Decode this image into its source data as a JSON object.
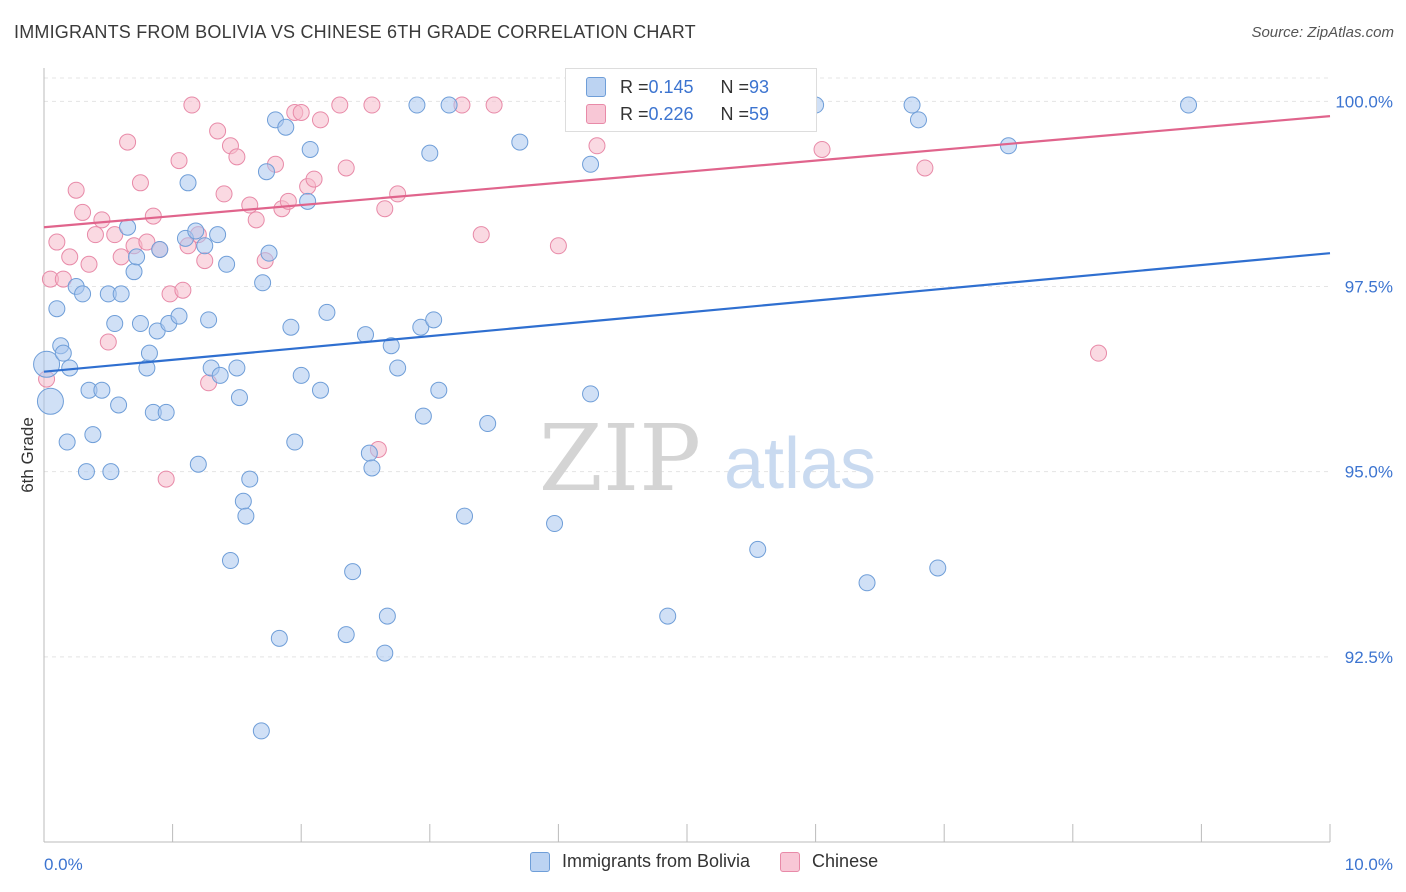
{
  "header": {
    "title": "IMMIGRANTS FROM BOLIVIA VS CHINESE 6TH GRADE CORRELATION CHART",
    "source": "Source: ZipAtlas.com"
  },
  "watermark": {
    "zip": "ZIP",
    "atlas": "atlas"
  },
  "legend_box": {
    "rows": [
      {
        "r_label": "R = ",
        "r_value": "0.145",
        "n_label": "N = ",
        "n_value": "93"
      },
      {
        "r_label": "R = ",
        "r_value": "0.226",
        "n_label": "N = ",
        "n_value": "59"
      }
    ]
  },
  "colors": {
    "blue_fill": "#a9c6ee",
    "blue_stroke": "#6f9ed8",
    "blue_line": "#2f6fd0",
    "pink_fill": "#f5b9cb",
    "pink_stroke": "#e88aa8",
    "pink_line": "#e0648c",
    "axis_text": "#3c74d0",
    "grid": "#e4e4e4"
  },
  "chart_data": {
    "type": "scatter",
    "title": "IMMIGRANTS FROM BOLIVIA VS CHINESE 6TH GRADE CORRELATION CHART",
    "xlabel": "",
    "ylabel": "6th Grade",
    "x_unit": "%",
    "xlim": [
      0.0,
      10.0
    ],
    "ylim": [
      90.0,
      100.45
    ],
    "x_tick_labels": [
      "0.0%",
      "10.0%"
    ],
    "y_ticks": [
      92.5,
      95.0,
      97.5,
      100.0
    ],
    "y_tick_labels": [
      "92.5%",
      "95.0%",
      "97.5%",
      "100.0%"
    ],
    "grid": true,
    "legend_placement": "bottom-center",
    "series": [
      {
        "name": "Immigrants from Bolivia",
        "r": 0.145,
        "n": 93,
        "trend": [
          [
            0.0,
            96.35
          ],
          [
            10.0,
            97.95
          ]
        ],
        "points": [
          [
            0.02,
            96.45
          ],
          [
            0.05,
            95.95
          ],
          [
            0.1,
            97.2
          ],
          [
            0.13,
            96.7
          ],
          [
            0.15,
            96.6
          ],
          [
            0.2,
            96.4
          ],
          [
            0.18,
            95.4
          ],
          [
            0.25,
            97.5
          ],
          [
            0.3,
            97.4
          ],
          [
            0.33,
            95.0
          ],
          [
            0.35,
            96.1
          ],
          [
            0.38,
            95.5
          ],
          [
            0.45,
            96.1
          ],
          [
            0.5,
            97.4
          ],
          [
            0.52,
            95.0
          ],
          [
            0.55,
            97.0
          ],
          [
            0.58,
            95.9
          ],
          [
            0.6,
            97.4
          ],
          [
            0.65,
            98.3
          ],
          [
            0.7,
            97.7
          ],
          [
            0.72,
            97.9
          ],
          [
            0.75,
            97.0
          ],
          [
            0.8,
            96.4
          ],
          [
            0.82,
            96.6
          ],
          [
            0.85,
            95.8
          ],
          [
            0.88,
            96.9
          ],
          [
            0.9,
            98.0
          ],
          [
            0.95,
            95.8
          ],
          [
            0.97,
            97.0
          ],
          [
            1.05,
            97.1
          ],
          [
            1.1,
            98.15
          ],
          [
            1.12,
            98.9
          ],
          [
            1.18,
            98.25
          ],
          [
            1.2,
            95.1
          ],
          [
            1.25,
            98.05
          ],
          [
            1.28,
            97.05
          ],
          [
            1.3,
            96.4
          ],
          [
            1.35,
            98.2
          ],
          [
            1.37,
            96.3
          ],
          [
            1.42,
            97.8
          ],
          [
            1.45,
            93.8
          ],
          [
            1.5,
            96.4
          ],
          [
            1.52,
            96.0
          ],
          [
            1.55,
            94.6
          ],
          [
            1.57,
            94.4
          ],
          [
            1.6,
            94.9
          ],
          [
            1.69,
            91.5
          ],
          [
            1.7,
            97.55
          ],
          [
            1.73,
            99.05
          ],
          [
            1.75,
            97.95
          ],
          [
            1.8,
            99.75
          ],
          [
            1.83,
            92.75
          ],
          [
            1.88,
            99.65
          ],
          [
            1.92,
            96.95
          ],
          [
            1.95,
            95.4
          ],
          [
            2.0,
            96.3
          ],
          [
            2.05,
            98.65
          ],
          [
            2.07,
            99.35
          ],
          [
            2.15,
            96.1
          ],
          [
            2.2,
            97.15
          ],
          [
            2.35,
            92.8
          ],
          [
            2.4,
            93.65
          ],
          [
            2.5,
            96.85
          ],
          [
            2.53,
            95.25
          ],
          [
            2.55,
            95.05
          ],
          [
            2.65,
            92.55
          ],
          [
            2.67,
            93.05
          ],
          [
            2.7,
            96.7
          ],
          [
            2.75,
            96.4
          ],
          [
            2.9,
            99.95
          ],
          [
            2.93,
            96.95
          ],
          [
            2.95,
            95.75
          ],
          [
            3.0,
            99.3
          ],
          [
            3.03,
            97.05
          ],
          [
            3.07,
            96.1
          ],
          [
            3.15,
            99.95
          ],
          [
            3.27,
            94.4
          ],
          [
            3.45,
            95.65
          ],
          [
            3.7,
            99.45
          ],
          [
            3.97,
            94.3
          ],
          [
            4.2,
            99.95
          ],
          [
            4.25,
            99.15
          ],
          [
            4.25,
            96.05
          ],
          [
            4.85,
            93.05
          ],
          [
            5.0,
            99.95
          ],
          [
            5.55,
            93.95
          ],
          [
            6.0,
            99.95
          ],
          [
            6.4,
            93.5
          ],
          [
            6.75,
            99.95
          ],
          [
            6.8,
            99.75
          ],
          [
            6.95,
            93.7
          ],
          [
            7.5,
            99.4
          ],
          [
            8.9,
            99.95
          ]
        ]
      },
      {
        "name": "Chinese",
        "r": 0.226,
        "n": 59,
        "trend": [
          [
            0.0,
            98.3
          ],
          [
            10.0,
            99.8
          ]
        ],
        "points": [
          [
            0.02,
            96.25
          ],
          [
            0.05,
            97.6
          ],
          [
            0.1,
            98.1
          ],
          [
            0.15,
            97.6
          ],
          [
            0.2,
            97.9
          ],
          [
            0.25,
            98.8
          ],
          [
            0.3,
            98.5
          ],
          [
            0.35,
            97.8
          ],
          [
            0.4,
            98.2
          ],
          [
            0.45,
            98.4
          ],
          [
            0.5,
            96.75
          ],
          [
            0.55,
            98.2
          ],
          [
            0.6,
            97.9
          ],
          [
            0.65,
            99.45
          ],
          [
            0.7,
            98.05
          ],
          [
            0.75,
            98.9
          ],
          [
            0.8,
            98.1
          ],
          [
            0.85,
            98.45
          ],
          [
            0.9,
            98.0
          ],
          [
            0.95,
            94.9
          ],
          [
            0.98,
            97.4
          ],
          [
            1.05,
            99.2
          ],
          [
            1.08,
            97.45
          ],
          [
            1.12,
            98.05
          ],
          [
            1.15,
            99.95
          ],
          [
            1.2,
            98.2
          ],
          [
            1.25,
            97.85
          ],
          [
            1.28,
            96.2
          ],
          [
            1.35,
            99.6
          ],
          [
            1.4,
            98.75
          ],
          [
            1.45,
            99.4
          ],
          [
            1.5,
            99.25
          ],
          [
            1.6,
            98.6
          ],
          [
            1.65,
            98.4
          ],
          [
            1.72,
            97.85
          ],
          [
            1.8,
            99.15
          ],
          [
            1.85,
            98.55
          ],
          [
            1.9,
            98.65
          ],
          [
            1.95,
            99.85
          ],
          [
            2.0,
            99.85
          ],
          [
            2.05,
            98.85
          ],
          [
            2.1,
            98.95
          ],
          [
            2.15,
            99.75
          ],
          [
            2.3,
            99.95
          ],
          [
            2.35,
            99.1
          ],
          [
            2.55,
            99.95
          ],
          [
            2.6,
            95.3
          ],
          [
            2.65,
            98.55
          ],
          [
            2.75,
            98.75
          ],
          [
            3.25,
            99.95
          ],
          [
            3.4,
            98.2
          ],
          [
            3.5,
            99.95
          ],
          [
            4.0,
            98.05
          ],
          [
            4.3,
            99.4
          ],
          [
            4.5,
            99.95
          ],
          [
            4.65,
            99.95
          ],
          [
            6.05,
            99.35
          ],
          [
            6.85,
            99.1
          ],
          [
            8.2,
            96.6
          ]
        ]
      }
    ]
  },
  "bottom_legend": {
    "items": [
      {
        "label": "Immigrants from Bolivia"
      },
      {
        "label": "Chinese"
      }
    ]
  }
}
